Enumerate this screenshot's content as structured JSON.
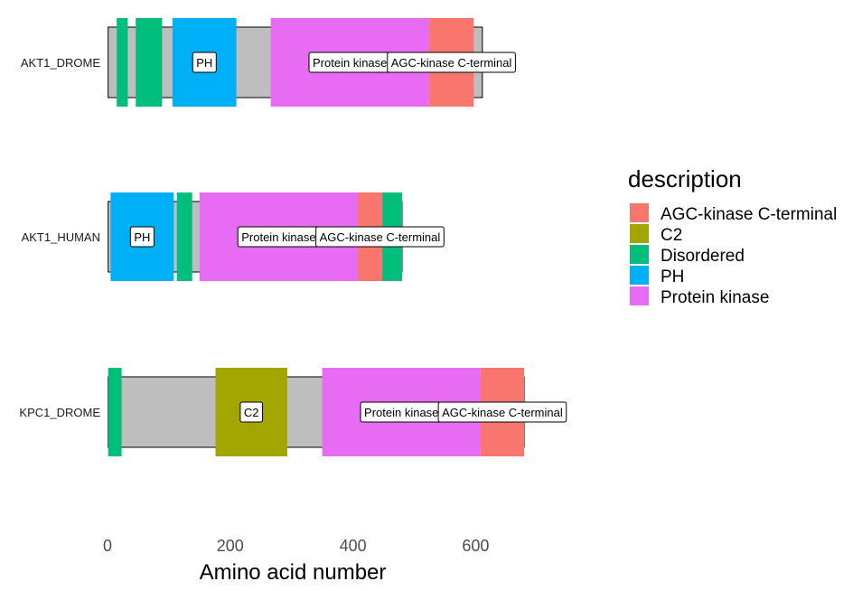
{
  "chart_data": {
    "type": "bar",
    "xlabel": "Amino acid number",
    "xlim": [
      0,
      700
    ],
    "x_ticks": [
      0,
      200,
      400,
      600
    ],
    "grid": false,
    "legend": {
      "title": "description",
      "position": "right",
      "entries": [
        {
          "name": "AGC-kinase C-terminal",
          "color": "#F8766D"
        },
        {
          "name": "C2",
          "color": "#A3A500"
        },
        {
          "name": "Disordered",
          "color": "#00BF7D"
        },
        {
          "name": "PH",
          "color": "#00B0F6"
        },
        {
          "name": "Protein kinase",
          "color": "#E76BF3"
        }
      ]
    },
    "proteins": [
      {
        "name": "AKT1_DROME",
        "length": [
          1,
          611
        ],
        "domains": [
          {
            "description": "Disordered",
            "start": 15,
            "end": 33,
            "label": ""
          },
          {
            "description": "Disordered",
            "start": 46,
            "end": 89,
            "label": ""
          },
          {
            "description": "PH",
            "start": 106,
            "end": 210,
            "label": "PH"
          },
          {
            "description": "Protein kinase",
            "start": 266,
            "end": 524,
            "label": "Protein kinase"
          },
          {
            "description": "AGC-kinase C-terminal",
            "start": 524,
            "end": 597,
            "label": "AGC-kinase C-terminal"
          }
        ]
      },
      {
        "name": "AKT1_HUMAN",
        "length": [
          1,
          480
        ],
        "domains": [
          {
            "description": "PH",
            "start": 5,
            "end": 108,
            "label": "PH"
          },
          {
            "description": "Disordered",
            "start": 113,
            "end": 138,
            "label": ""
          },
          {
            "description": "Protein kinase",
            "start": 150,
            "end": 408,
            "label": "Protein kinase"
          },
          {
            "description": "AGC-kinase C-terminal",
            "start": 408,
            "end": 480,
            "label": "AGC-kinase C-terminal"
          },
          {
            "description": "Disordered",
            "start": 448,
            "end": 480,
            "label": ""
          }
        ]
      },
      {
        "name": "KPC1_DROME",
        "length": [
          1,
          679
        ],
        "domains": [
          {
            "description": "Disordered",
            "start": 1,
            "end": 23,
            "label": ""
          },
          {
            "description": "C2",
            "start": 176,
            "end": 293,
            "label": "C2"
          },
          {
            "description": "Protein kinase",
            "start": 350,
            "end": 608,
            "label": "Protein kinase"
          },
          {
            "description": "AGC-kinase C-terminal",
            "start": 608,
            "end": 679,
            "label": "AGC-kinase C-terminal"
          }
        ]
      }
    ]
  }
}
